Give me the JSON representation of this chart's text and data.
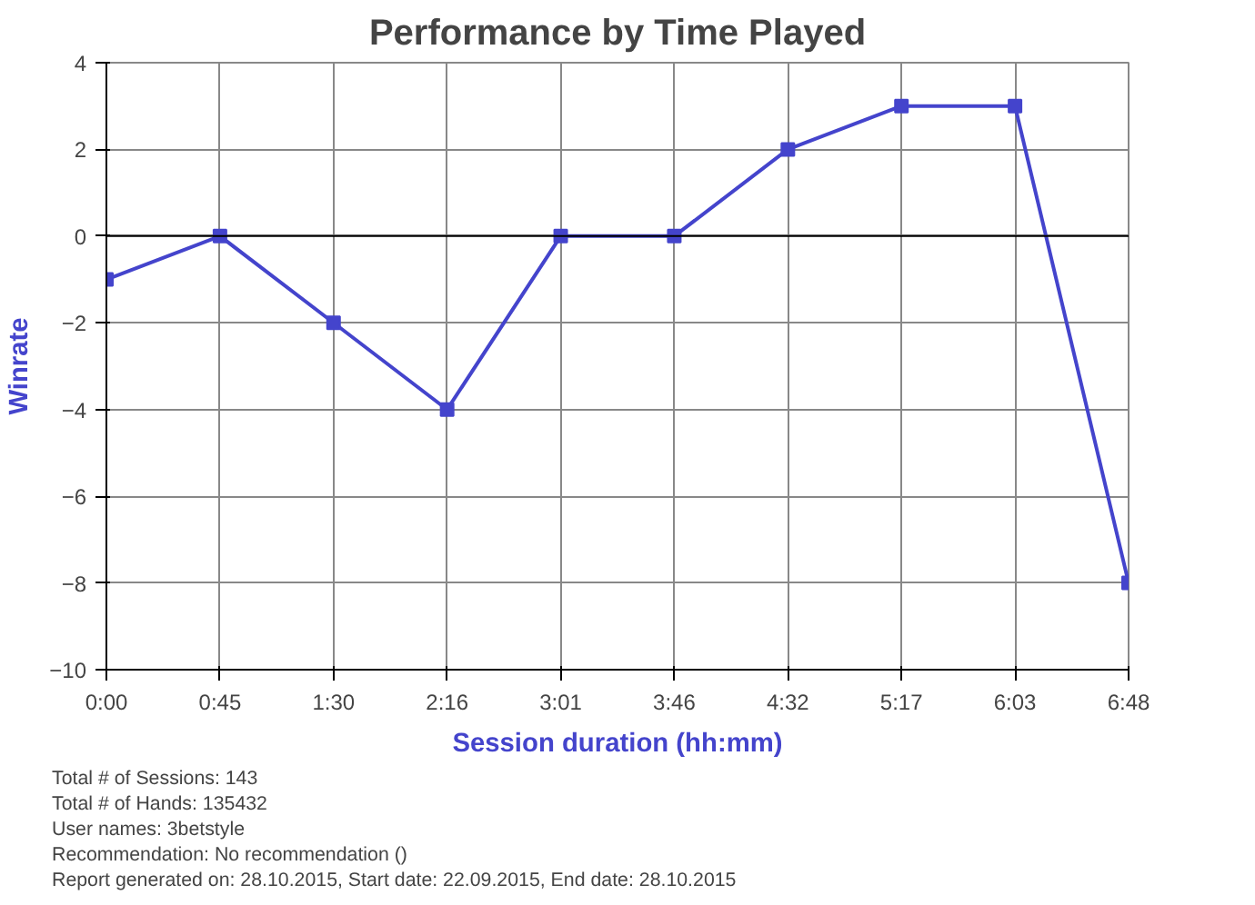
{
  "chart_data": {
    "type": "line",
    "title": "Performance by Time Played",
    "xlabel": "Session duration (hh:mm)",
    "ylabel": "Winrate",
    "categories": [
      "0:00",
      "0:45",
      "1:30",
      "2:16",
      "3:01",
      "3:46",
      "4:32",
      "5:17",
      "6:03",
      "6:48"
    ],
    "series": [
      {
        "color": "#4444cc",
        "values": [
          -1,
          0,
          -2,
          -4,
          0,
          0,
          2,
          3,
          3,
          -8
        ]
      }
    ],
    "ylim": [
      -10,
      4
    ],
    "yticks": [
      -10,
      -8,
      -6,
      -4,
      -2,
      0,
      2,
      4
    ],
    "grid": true,
    "marker": "square",
    "line_style": "solid",
    "ref_lines": [
      {
        "axis": "y",
        "value": 0,
        "color": "#000000"
      }
    ],
    "annotations": [
      "Total # of Sessions: 143",
      "Total # of Hands: 135432",
      "User names: 3betstyle",
      "Recommendation: No recommendation ()",
      "Report generated on: 28.10.2015, Start date: 22.09.2015, End date: 28.10.2015"
    ]
  }
}
